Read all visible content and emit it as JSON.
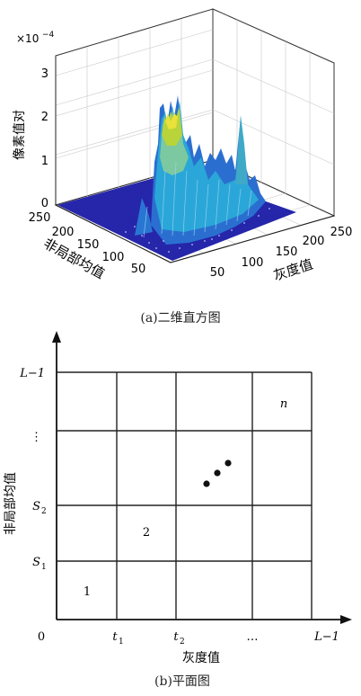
{
  "figure_a": {
    "caption": "(a)二维直方图",
    "exponent": "×10",
    "exponent_power": "−4",
    "z_axis_label": "像素值对",
    "z_ticks": [
      "0",
      "1",
      "2",
      "3"
    ],
    "left_axis_label": "非局部均值",
    "left_ticks": [
      "250",
      "200",
      "150",
      "100",
      "50"
    ],
    "right_axis_label": "灰度值",
    "right_ticks": [
      "50",
      "100",
      "150",
      "200",
      "250"
    ],
    "colors": {
      "base": "#1a1aa6",
      "mid": "#2aa7d8",
      "high": "#b8d43a",
      "peak": "#e8e23a"
    }
  },
  "figure_b": {
    "caption": "(b)平面图",
    "y_axis_label": "非局部均值",
    "x_axis_label": "灰度值",
    "origin": "0",
    "y_ticks": [
      "L−1",
      "⋮",
      "S",
      "S"
    ],
    "y_tick_subs": [
      "",
      "",
      "2",
      "1"
    ],
    "x_ticks": [
      "t",
      "t",
      "…",
      "L−1"
    ],
    "x_tick_subs": [
      "1",
      "2",
      "",
      ""
    ],
    "cell_labels": [
      "1",
      "2",
      "n"
    ]
  }
}
